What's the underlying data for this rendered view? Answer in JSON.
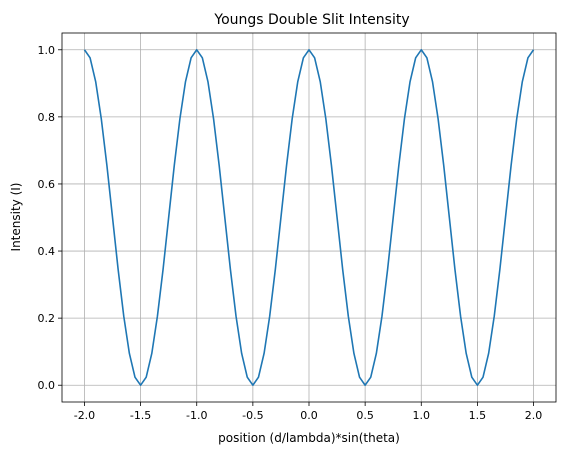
{
  "chart_data": {
    "type": "line",
    "title": "Youngs Double Slit Intensity",
    "xlabel": "position (d/lambda)*sin(theta)",
    "ylabel": "Intensity (I)",
    "xlim": [
      -2.2,
      2.2
    ],
    "ylim": [
      -0.05,
      1.05
    ],
    "xticks": [
      -2.0,
      -1.5,
      -1.0,
      -0.5,
      0.0,
      0.5,
      1.0,
      1.5,
      2.0
    ],
    "yticks": [
      0.0,
      0.2,
      0.4,
      0.6,
      0.8,
      1.0
    ],
    "grid": true,
    "series": [
      {
        "color": "#1f77b4",
        "x": [
          -2.0,
          -1.95,
          -1.9,
          -1.85,
          -1.8,
          -1.75,
          -1.7,
          -1.65,
          -1.6,
          -1.55,
          -1.5,
          -1.45,
          -1.4,
          -1.35,
          -1.3,
          -1.25,
          -1.2,
          -1.15,
          -1.1,
          -1.05,
          -1.0,
          -0.95,
          -0.9,
          -0.85,
          -0.8,
          -0.75,
          -0.7,
          -0.65,
          -0.6,
          -0.55,
          -0.5,
          -0.45,
          -0.4,
          -0.35,
          -0.3,
          -0.25,
          -0.2,
          -0.15,
          -0.1,
          -0.05,
          0.0,
          0.05,
          0.1,
          0.15,
          0.2,
          0.25,
          0.3,
          0.35,
          0.4,
          0.45,
          0.5,
          0.55,
          0.6,
          0.65,
          0.7,
          0.75,
          0.8,
          0.85,
          0.9,
          0.95,
          1.0,
          1.05,
          1.1,
          1.15,
          1.2,
          1.25,
          1.3,
          1.35,
          1.4,
          1.45,
          1.5,
          1.55,
          1.6,
          1.65,
          1.7,
          1.75,
          1.8,
          1.85,
          1.9,
          1.95,
          2.0
        ],
        "y": [
          1.0,
          0.976,
          0.905,
          0.794,
          0.655,
          0.5,
          0.345,
          0.206,
          0.095,
          0.024,
          0.0,
          0.024,
          0.095,
          0.206,
          0.345,
          0.5,
          0.655,
          0.794,
          0.905,
          0.976,
          1.0,
          0.976,
          0.905,
          0.794,
          0.655,
          0.5,
          0.345,
          0.206,
          0.095,
          0.024,
          0.0,
          0.024,
          0.095,
          0.206,
          0.345,
          0.5,
          0.655,
          0.794,
          0.905,
          0.976,
          1.0,
          0.976,
          0.905,
          0.794,
          0.655,
          0.5,
          0.345,
          0.206,
          0.095,
          0.024,
          0.0,
          0.024,
          0.095,
          0.206,
          0.345,
          0.5,
          0.655,
          0.794,
          0.905,
          0.976,
          1.0,
          0.976,
          0.905,
          0.794,
          0.655,
          0.5,
          0.345,
          0.206,
          0.095,
          0.024,
          0.0,
          0.024,
          0.095,
          0.206,
          0.345,
          0.5,
          0.655,
          0.794,
          0.905,
          0.976,
          1.0
        ]
      }
    ]
  }
}
